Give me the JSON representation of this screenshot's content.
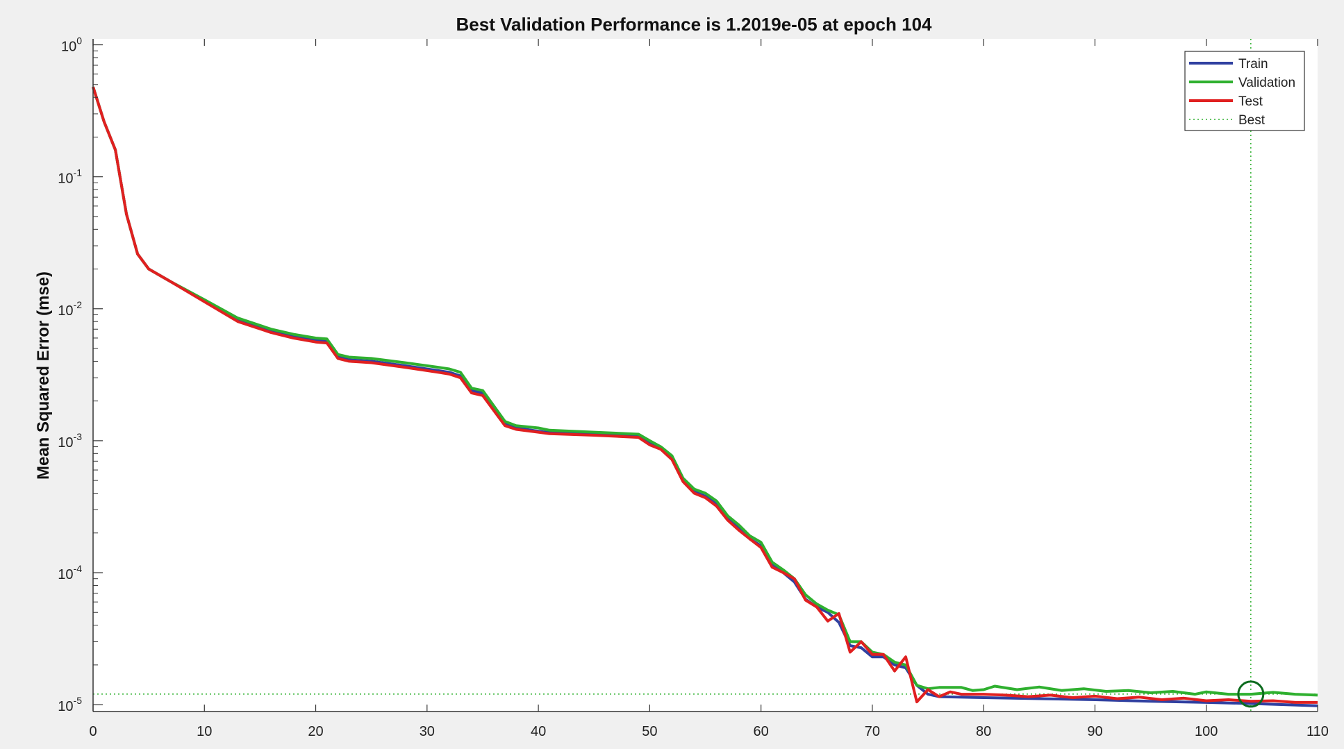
{
  "chart_data": {
    "type": "line",
    "title": "Best Validation Performance is 1.2019e-05 at epoch 104",
    "ylabel": "Mean Squared Error  (mse)",
    "xlabel": "",
    "xlim": [
      0,
      110
    ],
    "ylim": [
      8e-06,
      1.1
    ],
    "yscale": "log",
    "grid": false,
    "legend_position": "top-right",
    "x_ticks": [
      0,
      10,
      20,
      30,
      40,
      50,
      60,
      70,
      80,
      90,
      100,
      110
    ],
    "y_ticks": [
      {
        "base": "10",
        "exp": "0",
        "value": 1
      },
      {
        "base": "10",
        "exp": "-1",
        "value": 0.1
      },
      {
        "base": "10",
        "exp": "-2",
        "value": 0.01
      },
      {
        "base": "10",
        "exp": "-3",
        "value": 0.001
      },
      {
        "base": "10",
        "exp": "-4",
        "value": 0.0001
      },
      {
        "base": "10",
        "exp": "-5",
        "value": 1e-05
      }
    ],
    "series": [
      {
        "name": "Train",
        "color": "#3040a0",
        "points": [
          [
            0,
            0.48
          ],
          [
            1,
            0.26
          ],
          [
            2,
            0.16
          ],
          [
            3,
            0.052
          ],
          [
            4,
            0.026
          ],
          [
            5,
            0.02
          ],
          [
            7,
            0.016
          ],
          [
            10,
            0.0115
          ],
          [
            13,
            0.0082
          ],
          [
            16,
            0.0068
          ],
          [
            18,
            0.0062
          ],
          [
            20,
            0.0058
          ],
          [
            21,
            0.0057
          ],
          [
            22,
            0.0043
          ],
          [
            23,
            0.0041
          ],
          [
            25,
            0.004
          ],
          [
            28,
            0.0037
          ],
          [
            31,
            0.0034
          ],
          [
            32,
            0.0033
          ],
          [
            33,
            0.0031
          ],
          [
            34,
            0.0024
          ],
          [
            35,
            0.0023
          ],
          [
            37,
            0.00135
          ],
          [
            38,
            0.00125
          ],
          [
            40,
            0.00118
          ],
          [
            41,
            0.00115
          ],
          [
            45,
            0.00112
          ],
          [
            49,
            0.00108
          ],
          [
            50,
            0.00095
          ],
          [
            51,
            0.00088
          ],
          [
            52,
            0.00074
          ],
          [
            53,
            0.0005
          ],
          [
            54,
            0.00041
          ],
          [
            55,
            0.00038
          ],
          [
            56,
            0.00033
          ],
          [
            57,
            0.00026
          ],
          [
            58,
            0.00022
          ],
          [
            59,
            0.00018
          ],
          [
            60,
            0.00016
          ],
          [
            61,
            0.000115
          ],
          [
            62,
            0.0001
          ],
          [
            63,
            8.5e-05
          ],
          [
            64,
            6.3e-05
          ],
          [
            65,
            5.5e-05
          ],
          [
            66,
            5e-05
          ],
          [
            67,
            4.2e-05
          ],
          [
            68,
            2.8e-05
          ],
          [
            69,
            2.7e-05
          ],
          [
            70,
            2.3e-05
          ],
          [
            71,
            2.3e-05
          ],
          [
            72,
            2e-05
          ],
          [
            73,
            1.9e-05
          ],
          [
            74,
            1.4e-05
          ],
          [
            75,
            1.2e-05
          ],
          [
            76,
            1.15e-05
          ],
          [
            80,
            1.13e-05
          ],
          [
            85,
            1.11e-05
          ],
          [
            90,
            1.09e-05
          ],
          [
            95,
            1.06e-05
          ],
          [
            100,
            1.04e-05
          ],
          [
            104,
            1.02e-05
          ],
          [
            110,
            9.8e-06
          ]
        ]
      },
      {
        "name": "Validation",
        "color": "#2fb02f",
        "points": [
          [
            0,
            0.48
          ],
          [
            1,
            0.26
          ],
          [
            2,
            0.16
          ],
          [
            3,
            0.052
          ],
          [
            4,
            0.026
          ],
          [
            5,
            0.02
          ],
          [
            7,
            0.016
          ],
          [
            10,
            0.0117
          ],
          [
            13,
            0.0085
          ],
          [
            16,
            0.007
          ],
          [
            18,
            0.0064
          ],
          [
            20,
            0.006
          ],
          [
            21,
            0.0059
          ],
          [
            22,
            0.0045
          ],
          [
            23,
            0.0043
          ],
          [
            25,
            0.0042
          ],
          [
            28,
            0.0039
          ],
          [
            31,
            0.0036
          ],
          [
            32,
            0.0035
          ],
          [
            33,
            0.0033
          ],
          [
            34,
            0.0025
          ],
          [
            35,
            0.0024
          ],
          [
            37,
            0.0014
          ],
          [
            38,
            0.0013
          ],
          [
            40,
            0.00125
          ],
          [
            41,
            0.0012
          ],
          [
            45,
            0.00116
          ],
          [
            49,
            0.00112
          ],
          [
            50,
            0.001
          ],
          [
            51,
            0.0009
          ],
          [
            52,
            0.00077
          ],
          [
            53,
            0.00052
          ],
          [
            54,
            0.00043
          ],
          [
            55,
            0.0004
          ],
          [
            56,
            0.00035
          ],
          [
            57,
            0.00027
          ],
          [
            58,
            0.00023
          ],
          [
            59,
            0.00019
          ],
          [
            60,
            0.00017
          ],
          [
            61,
            0.00012
          ],
          [
            62,
            0.000105
          ],
          [
            63,
            9e-05
          ],
          [
            64,
            6.8e-05
          ],
          [
            65,
            5.8e-05
          ],
          [
            66,
            5.2e-05
          ],
          [
            67,
            4.8e-05
          ],
          [
            68,
            3e-05
          ],
          [
            69,
            3e-05
          ],
          [
            70,
            2.5e-05
          ],
          [
            71,
            2.4e-05
          ],
          [
            72,
            2.1e-05
          ],
          [
            73,
            2e-05
          ],
          [
            74,
            1.4e-05
          ],
          [
            75,
            1.32e-05
          ],
          [
            76,
            1.35e-05
          ],
          [
            78,
            1.35e-05
          ],
          [
            79,
            1.28e-05
          ],
          [
            80,
            1.3e-05
          ],
          [
            81,
            1.38e-05
          ],
          [
            83,
            1.3e-05
          ],
          [
            85,
            1.36e-05
          ],
          [
            87,
            1.28e-05
          ],
          [
            89,
            1.32e-05
          ],
          [
            91,
            1.26e-05
          ],
          [
            93,
            1.28e-05
          ],
          [
            95,
            1.23e-05
          ],
          [
            97,
            1.26e-05
          ],
          [
            99,
            1.2e-05
          ],
          [
            100,
            1.25e-05
          ],
          [
            102,
            1.2e-05
          ],
          [
            104,
            1.2e-05
          ],
          [
            106,
            1.24e-05
          ],
          [
            108,
            1.2e-05
          ],
          [
            110,
            1.18e-05
          ]
        ]
      },
      {
        "name": "Test",
        "color": "#e02020",
        "points": [
          [
            0,
            0.48
          ],
          [
            1,
            0.26
          ],
          [
            2,
            0.16
          ],
          [
            3,
            0.052
          ],
          [
            4,
            0.026
          ],
          [
            5,
            0.02
          ],
          [
            7,
            0.016
          ],
          [
            10,
            0.0113
          ],
          [
            13,
            0.008
          ],
          [
            16,
            0.0066
          ],
          [
            18,
            0.006
          ],
          [
            20,
            0.0056
          ],
          [
            21,
            0.0055
          ],
          [
            22,
            0.0042
          ],
          [
            23,
            0.004
          ],
          [
            25,
            0.0039
          ],
          [
            28,
            0.0036
          ],
          [
            31,
            0.0033
          ],
          [
            32,
            0.0032
          ],
          [
            33,
            0.003
          ],
          [
            34,
            0.0023
          ],
          [
            35,
            0.0022
          ],
          [
            37,
            0.0013
          ],
          [
            38,
            0.00122
          ],
          [
            40,
            0.00116
          ],
          [
            41,
            0.00113
          ],
          [
            45,
            0.0011
          ],
          [
            49,
            0.00106
          ],
          [
            50,
            0.00093
          ],
          [
            51,
            0.00086
          ],
          [
            52,
            0.00072
          ],
          [
            53,
            0.00049
          ],
          [
            54,
            0.0004
          ],
          [
            55,
            0.00037
          ],
          [
            56,
            0.00032
          ],
          [
            57,
            0.00025
          ],
          [
            58,
            0.00021
          ],
          [
            59,
            0.00018
          ],
          [
            60,
            0.000155
          ],
          [
            61,
            0.00011
          ],
          [
            62,
            0.0001
          ],
          [
            63,
            9e-05
          ],
          [
            64,
            6.2e-05
          ],
          [
            65,
            5.5e-05
          ],
          [
            66,
            4.3e-05
          ],
          [
            67,
            4.9e-05
          ],
          [
            68,
            2.5e-05
          ],
          [
            69,
            3e-05
          ],
          [
            70,
            2.4e-05
          ],
          [
            71,
            2.4e-05
          ],
          [
            72,
            1.8e-05
          ],
          [
            73,
            2.3e-05
          ],
          [
            74,
            1.05e-05
          ],
          [
            75,
            1.3e-05
          ],
          [
            76,
            1.15e-05
          ],
          [
            77,
            1.25e-05
          ],
          [
            78,
            1.2e-05
          ],
          [
            80,
            1.2e-05
          ],
          [
            82,
            1.18e-05
          ],
          [
            84,
            1.15e-05
          ],
          [
            86,
            1.18e-05
          ],
          [
            88,
            1.13e-05
          ],
          [
            90,
            1.16e-05
          ],
          [
            92,
            1.11e-05
          ],
          [
            94,
            1.14e-05
          ],
          [
            96,
            1.09e-05
          ],
          [
            98,
            1.12e-05
          ],
          [
            100,
            1.07e-05
          ],
          [
            102,
            1.09e-05
          ],
          [
            104,
            1.06e-05
          ],
          [
            106,
            1.07e-05
          ],
          [
            108,
            1.04e-05
          ],
          [
            110,
            1.04e-05
          ]
        ]
      }
    ],
    "best": {
      "name": "Best",
      "epoch": 104,
      "value": 1.2019e-05,
      "color": "#2fb02f",
      "marker_color": "#0d6b1e"
    }
  }
}
